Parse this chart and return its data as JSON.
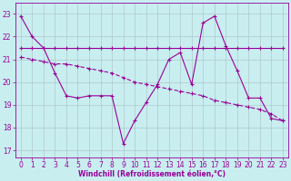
{
  "xlabel": "Windchill (Refroidissement éolien,°C)",
  "background_color": "#c8eef0",
  "line_color": "#990099",
  "grid_color": "#b0c8cc",
  "xlim_min": -0.5,
  "xlim_max": 23.5,
  "ylim_min": 16.7,
  "ylim_max": 23.5,
  "yticks": [
    17,
    18,
    19,
    20,
    21,
    22,
    23
  ],
  "xticks": [
    0,
    1,
    2,
    3,
    4,
    5,
    6,
    7,
    8,
    9,
    10,
    11,
    12,
    13,
    14,
    15,
    16,
    17,
    18,
    19,
    20,
    21,
    22,
    23
  ],
  "line1_x": [
    0,
    1,
    2,
    3,
    4,
    5,
    6,
    7,
    8,
    9,
    10,
    11,
    12,
    13,
    14,
    15,
    16,
    17,
    18,
    19,
    20,
    21,
    22,
    23
  ],
  "line1_y": [
    22.9,
    22.0,
    21.5,
    20.4,
    19.4,
    19.3,
    19.4,
    19.4,
    19.4,
    17.3,
    18.3,
    19.1,
    19.9,
    21.0,
    21.3,
    19.9,
    22.6,
    22.9,
    21.6,
    20.5,
    19.3,
    19.3,
    18.4,
    18.3
  ],
  "line2_x": [
    0,
    1,
    2,
    3,
    4,
    5,
    6,
    7,
    8,
    9,
    10,
    11,
    12,
    13,
    14,
    15,
    16,
    17,
    18,
    19,
    20,
    21,
    22,
    23
  ],
  "line2_y": [
    21.5,
    21.5,
    21.5,
    21.5,
    21.5,
    21.5,
    21.5,
    21.5,
    21.5,
    21.5,
    21.5,
    21.5,
    21.5,
    21.5,
    21.5,
    21.5,
    21.5,
    21.5,
    21.5,
    21.5,
    21.5,
    21.5,
    21.5,
    21.5
  ],
  "line3_x": [
    0,
    1,
    2,
    3,
    4,
    5,
    6,
    7,
    8,
    9,
    10,
    11,
    12,
    13,
    14,
    15,
    16,
    17,
    18,
    19,
    20,
    21,
    22,
    23
  ],
  "line3_y": [
    21.1,
    21.0,
    20.9,
    20.8,
    20.8,
    20.7,
    20.6,
    20.5,
    20.4,
    20.2,
    20.0,
    19.9,
    19.8,
    19.7,
    19.6,
    19.5,
    19.4,
    19.2,
    19.1,
    19.0,
    18.9,
    18.8,
    18.6,
    18.3
  ]
}
